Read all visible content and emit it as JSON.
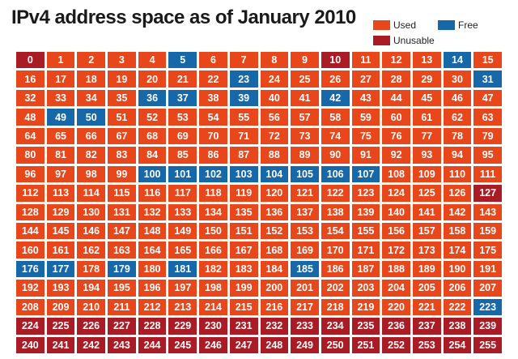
{
  "chart_data": {
    "type": "heatmap",
    "title": "IPv4 address space as of January 2010",
    "colors": {
      "used": "#e8461b",
      "free": "#1668a8",
      "unusable": "#a91c25"
    },
    "legend": [
      {
        "key": "used",
        "label": "Used"
      },
      {
        "key": "free",
        "label": "Free"
      },
      {
        "key": "unusable",
        "label": "Unusable"
      }
    ],
    "grid": {
      "rows": 16,
      "columns": 16
    },
    "blocks": [
      {
        "label": "0",
        "status": "unusable"
      },
      {
        "label": "1",
        "status": "used"
      },
      {
        "label": "2",
        "status": "used"
      },
      {
        "label": "3",
        "status": "used"
      },
      {
        "label": "4",
        "status": "used"
      },
      {
        "label": "5",
        "status": "free"
      },
      {
        "label": "6",
        "status": "used"
      },
      {
        "label": "7",
        "status": "used"
      },
      {
        "label": "8",
        "status": "used"
      },
      {
        "label": "9",
        "status": "used"
      },
      {
        "label": "10",
        "status": "unusable"
      },
      {
        "label": "11",
        "status": "used"
      },
      {
        "label": "12",
        "status": "used"
      },
      {
        "label": "13",
        "status": "used"
      },
      {
        "label": "14",
        "status": "free"
      },
      {
        "label": "15",
        "status": "used"
      },
      {
        "label": "16",
        "status": "used"
      },
      {
        "label": "17",
        "status": "used"
      },
      {
        "label": "18",
        "status": "used"
      },
      {
        "label": "19",
        "status": "used"
      },
      {
        "label": "20",
        "status": "used"
      },
      {
        "label": "21",
        "status": "used"
      },
      {
        "label": "22",
        "status": "used"
      },
      {
        "label": "23",
        "status": "free"
      },
      {
        "label": "24",
        "status": "used"
      },
      {
        "label": "25",
        "status": "used"
      },
      {
        "label": "26",
        "status": "used"
      },
      {
        "label": "27",
        "status": "used"
      },
      {
        "label": "28",
        "status": "used"
      },
      {
        "label": "29",
        "status": "used"
      },
      {
        "label": "30",
        "status": "used"
      },
      {
        "label": "31",
        "status": "free"
      },
      {
        "label": "32",
        "status": "used"
      },
      {
        "label": "33",
        "status": "used"
      },
      {
        "label": "34",
        "status": "used"
      },
      {
        "label": "35",
        "status": "used"
      },
      {
        "label": "36",
        "status": "free"
      },
      {
        "label": "37",
        "status": "free"
      },
      {
        "label": "38",
        "status": "used"
      },
      {
        "label": "39",
        "status": "free"
      },
      {
        "label": "40",
        "status": "used"
      },
      {
        "label": "41",
        "status": "used"
      },
      {
        "label": "42",
        "status": "free"
      },
      {
        "label": "43",
        "status": "used"
      },
      {
        "label": "44",
        "status": "used"
      },
      {
        "label": "45",
        "status": "used"
      },
      {
        "label": "46",
        "status": "used"
      },
      {
        "label": "47",
        "status": "used"
      },
      {
        "label": "48",
        "status": "used"
      },
      {
        "label": "49",
        "status": "free"
      },
      {
        "label": "50",
        "status": "free"
      },
      {
        "label": "51",
        "status": "used"
      },
      {
        "label": "52",
        "status": "used"
      },
      {
        "label": "53",
        "status": "used"
      },
      {
        "label": "54",
        "status": "used"
      },
      {
        "label": "55",
        "status": "used"
      },
      {
        "label": "56",
        "status": "used"
      },
      {
        "label": "57",
        "status": "used"
      },
      {
        "label": "58",
        "status": "used"
      },
      {
        "label": "59",
        "status": "used"
      },
      {
        "label": "60",
        "status": "used"
      },
      {
        "label": "61",
        "status": "used"
      },
      {
        "label": "62",
        "status": "used"
      },
      {
        "label": "63",
        "status": "used"
      },
      {
        "label": "64",
        "status": "used"
      },
      {
        "label": "65",
        "status": "used"
      },
      {
        "label": "66",
        "status": "used"
      },
      {
        "label": "67",
        "status": "used"
      },
      {
        "label": "68",
        "status": "used"
      },
      {
        "label": "69",
        "status": "used"
      },
      {
        "label": "70",
        "status": "used"
      },
      {
        "label": "71",
        "status": "used"
      },
      {
        "label": "72",
        "status": "used"
      },
      {
        "label": "73",
        "status": "used"
      },
      {
        "label": "74",
        "status": "used"
      },
      {
        "label": "75",
        "status": "used"
      },
      {
        "label": "76",
        "status": "used"
      },
      {
        "label": "77",
        "status": "used"
      },
      {
        "label": "78",
        "status": "used"
      },
      {
        "label": "79",
        "status": "used"
      },
      {
        "label": "80",
        "status": "used"
      },
      {
        "label": "81",
        "status": "used"
      },
      {
        "label": "82",
        "status": "used"
      },
      {
        "label": "83",
        "status": "used"
      },
      {
        "label": "84",
        "status": "used"
      },
      {
        "label": "85",
        "status": "used"
      },
      {
        "label": "86",
        "status": "used"
      },
      {
        "label": "87",
        "status": "used"
      },
      {
        "label": "88",
        "status": "used"
      },
      {
        "label": "89",
        "status": "used"
      },
      {
        "label": "90",
        "status": "used"
      },
      {
        "label": "91",
        "status": "used"
      },
      {
        "label": "92",
        "status": "used"
      },
      {
        "label": "93",
        "status": "used"
      },
      {
        "label": "94",
        "status": "used"
      },
      {
        "label": "95",
        "status": "used"
      },
      {
        "label": "96",
        "status": "used"
      },
      {
        "label": "97",
        "status": "used"
      },
      {
        "label": "98",
        "status": "used"
      },
      {
        "label": "99",
        "status": "used"
      },
      {
        "label": "100",
        "status": "free"
      },
      {
        "label": "101",
        "status": "free"
      },
      {
        "label": "102",
        "status": "free"
      },
      {
        "label": "103",
        "status": "free"
      },
      {
        "label": "104",
        "status": "free"
      },
      {
        "label": "105",
        "status": "free"
      },
      {
        "label": "106",
        "status": "free"
      },
      {
        "label": "107",
        "status": "free"
      },
      {
        "label": "108",
        "status": "used"
      },
      {
        "label": "109",
        "status": "used"
      },
      {
        "label": "110",
        "status": "used"
      },
      {
        "label": "111",
        "status": "used"
      },
      {
        "label": "112",
        "status": "used"
      },
      {
        "label": "113",
        "status": "used"
      },
      {
        "label": "114",
        "status": "used"
      },
      {
        "label": "115",
        "status": "used"
      },
      {
        "label": "116",
        "status": "used"
      },
      {
        "label": "117",
        "status": "used"
      },
      {
        "label": "118",
        "status": "used"
      },
      {
        "label": "119",
        "status": "used"
      },
      {
        "label": "120",
        "status": "used"
      },
      {
        "label": "121",
        "status": "used"
      },
      {
        "label": "122",
        "status": "used"
      },
      {
        "label": "123",
        "status": "used"
      },
      {
        "label": "124",
        "status": "used"
      },
      {
        "label": "125",
        "status": "used"
      },
      {
        "label": "126",
        "status": "used"
      },
      {
        "label": "127",
        "status": "unusable"
      },
      {
        "label": "128",
        "status": "used"
      },
      {
        "label": "129",
        "status": "used"
      },
      {
        "label": "130",
        "status": "used"
      },
      {
        "label": "131",
        "status": "used"
      },
      {
        "label": "132",
        "status": "used"
      },
      {
        "label": "133",
        "status": "used"
      },
      {
        "label": "134",
        "status": "used"
      },
      {
        "label": "135",
        "status": "used"
      },
      {
        "label": "136",
        "status": "used"
      },
      {
        "label": "137",
        "status": "used"
      },
      {
        "label": "138",
        "status": "used"
      },
      {
        "label": "139",
        "status": "used"
      },
      {
        "label": "140",
        "status": "used"
      },
      {
        "label": "141",
        "status": "used"
      },
      {
        "label": "142",
        "status": "used"
      },
      {
        "label": "143",
        "status": "used"
      },
      {
        "label": "144",
        "status": "used"
      },
      {
        "label": "145",
        "status": "used"
      },
      {
        "label": "146",
        "status": "used"
      },
      {
        "label": "147",
        "status": "used"
      },
      {
        "label": "148",
        "status": "used"
      },
      {
        "label": "149",
        "status": "used"
      },
      {
        "label": "150",
        "status": "used"
      },
      {
        "label": "151",
        "status": "used"
      },
      {
        "label": "152",
        "status": "used"
      },
      {
        "label": "153",
        "status": "used"
      },
      {
        "label": "154",
        "status": "used"
      },
      {
        "label": "155",
        "status": "used"
      },
      {
        "label": "156",
        "status": "used"
      },
      {
        "label": "157",
        "status": "used"
      },
      {
        "label": "158",
        "status": "used"
      },
      {
        "label": "159",
        "status": "used"
      },
      {
        "label": "160",
        "status": "used"
      },
      {
        "label": "161",
        "status": "used"
      },
      {
        "label": "162",
        "status": "used"
      },
      {
        "label": "163",
        "status": "used"
      },
      {
        "label": "164",
        "status": "used"
      },
      {
        "label": "165",
        "status": "used"
      },
      {
        "label": "166",
        "status": "used"
      },
      {
        "label": "167",
        "status": "used"
      },
      {
        "label": "168",
        "status": "used"
      },
      {
        "label": "169",
        "status": "used"
      },
      {
        "label": "170",
        "status": "used"
      },
      {
        "label": "171",
        "status": "used"
      },
      {
        "label": "172",
        "status": "used"
      },
      {
        "label": "173",
        "status": "used"
      },
      {
        "label": "174",
        "status": "used"
      },
      {
        "label": "175",
        "status": "used"
      },
      {
        "label": "176",
        "status": "free"
      },
      {
        "label": "177",
        "status": "free"
      },
      {
        "label": "178",
        "status": "used"
      },
      {
        "label": "179",
        "status": "free"
      },
      {
        "label": "180",
        "status": "used"
      },
      {
        "label": "181",
        "status": "free"
      },
      {
        "label": "182",
        "status": "used"
      },
      {
        "label": "183",
        "status": "used"
      },
      {
        "label": "184",
        "status": "used"
      },
      {
        "label": "185",
        "status": "free"
      },
      {
        "label": "186",
        "status": "used"
      },
      {
        "label": "187",
        "status": "used"
      },
      {
        "label": "188",
        "status": "used"
      },
      {
        "label": "189",
        "status": "used"
      },
      {
        "label": "190",
        "status": "used"
      },
      {
        "label": "191",
        "status": "used"
      },
      {
        "label": "192",
        "status": "used"
      },
      {
        "label": "193",
        "status": "used"
      },
      {
        "label": "194",
        "status": "used"
      },
      {
        "label": "195",
        "status": "used"
      },
      {
        "label": "196",
        "status": "used"
      },
      {
        "label": "197",
        "status": "used"
      },
      {
        "label": "198",
        "status": "used"
      },
      {
        "label": "199",
        "status": "used"
      },
      {
        "label": "200",
        "status": "used"
      },
      {
        "label": "201",
        "status": "used"
      },
      {
        "label": "202",
        "status": "used"
      },
      {
        "label": "203",
        "status": "used"
      },
      {
        "label": "204",
        "status": "used"
      },
      {
        "label": "205",
        "status": "used"
      },
      {
        "label": "206",
        "status": "used"
      },
      {
        "label": "207",
        "status": "used"
      },
      {
        "label": "208",
        "status": "used"
      },
      {
        "label": "209",
        "status": "used"
      },
      {
        "label": "210",
        "status": "used"
      },
      {
        "label": "211",
        "status": "used"
      },
      {
        "label": "212",
        "status": "used"
      },
      {
        "label": "213",
        "status": "used"
      },
      {
        "label": "214",
        "status": "used"
      },
      {
        "label": "215",
        "status": "used"
      },
      {
        "label": "216",
        "status": "used"
      },
      {
        "label": "217",
        "status": "used"
      },
      {
        "label": "218",
        "status": "used"
      },
      {
        "label": "219",
        "status": "used"
      },
      {
        "label": "220",
        "status": "used"
      },
      {
        "label": "221",
        "status": "used"
      },
      {
        "label": "222",
        "status": "used"
      },
      {
        "label": "223",
        "status": "free"
      },
      {
        "label": "224",
        "status": "unusable"
      },
      {
        "label": "225",
        "status": "unusable"
      },
      {
        "label": "226",
        "status": "unusable"
      },
      {
        "label": "227",
        "status": "unusable"
      },
      {
        "label": "228",
        "status": "unusable"
      },
      {
        "label": "229",
        "status": "unusable"
      },
      {
        "label": "230",
        "status": "unusable"
      },
      {
        "label": "231",
        "status": "unusable"
      },
      {
        "label": "232",
        "status": "unusable"
      },
      {
        "label": "233",
        "status": "unusable"
      },
      {
        "label": "234",
        "status": "unusable"
      },
      {
        "label": "235",
        "status": "unusable"
      },
      {
        "label": "236",
        "status": "unusable"
      },
      {
        "label": "237",
        "status": "unusable"
      },
      {
        "label": "238",
        "status": "unusable"
      },
      {
        "label": "239",
        "status": "unusable"
      },
      {
        "label": "240",
        "status": "unusable"
      },
      {
        "label": "241",
        "status": "unusable"
      },
      {
        "label": "242",
        "status": "unusable"
      },
      {
        "label": "243",
        "status": "unusable"
      },
      {
        "label": "244",
        "status": "unusable"
      },
      {
        "label": "245",
        "status": "unusable"
      },
      {
        "label": "246",
        "status": "unusable"
      },
      {
        "label": "247",
        "status": "unusable"
      },
      {
        "label": "248",
        "status": "unusable"
      },
      {
        "label": "249",
        "status": "unusable"
      },
      {
        "label": "250",
        "status": "unusable"
      },
      {
        "label": "251",
        "status": "unusable"
      },
      {
        "label": "252",
        "status": "unusable"
      },
      {
        "label": "253",
        "status": "unusable"
      },
      {
        "label": "254",
        "status": "unusable"
      },
      {
        "label": "255",
        "status": "unusable"
      }
    ]
  }
}
